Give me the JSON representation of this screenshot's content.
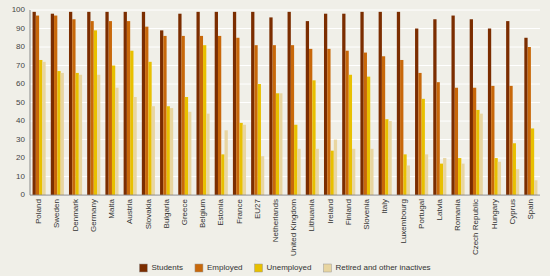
{
  "chart_data": {
    "type": "bar",
    "categories": [
      "Poland",
      "Sweden",
      "Denmark",
      "Germany",
      "Malta",
      "Austria",
      "Slovakia",
      "Bulgaria",
      "Greece",
      "Belgium",
      "Estonia",
      "France",
      "EU27",
      "Netherlands",
      "United Kingdom",
      "Lithuania",
      "Ireland",
      "Finland",
      "Slovenia",
      "Italy",
      "Luxembourg",
      "Portugal",
      "Latvia",
      "Romania",
      "Czech Republic",
      "Hungary",
      "Cyprus",
      "Spain"
    ],
    "series": [
      {
        "name": "Students",
        "color": "#7B2D00",
        "values": [
          99,
          98,
          99,
          99,
          99,
          99,
          99,
          89,
          98,
          99,
          99,
          99,
          99,
          96,
          99,
          94,
          98,
          98,
          99,
          99,
          99,
          90,
          95,
          97,
          95,
          90,
          94,
          85
        ]
      },
      {
        "name": "Employed",
        "color": "#C8680A",
        "values": [
          97,
          97,
          95,
          94,
          94,
          94,
          91,
          86,
          86,
          86,
          86,
          85,
          81,
          81,
          81,
          79,
          79,
          78,
          77,
          75,
          73,
          66,
          61,
          58,
          58,
          59,
          59,
          80
        ]
      },
      {
        "name": "Unemployed",
        "color": "#E8C000",
        "values": [
          73,
          67,
          66,
          89,
          70,
          78,
          72,
          48,
          53,
          81,
          22,
          39,
          60,
          55,
          38,
          62,
          24,
          65,
          64,
          41,
          22,
          52,
          17,
          20,
          46,
          20,
          28,
          36
        ]
      },
      {
        "name": "Retired and other inactives",
        "color": "#E8D5A0",
        "values": [
          72,
          66,
          65,
          65,
          58,
          53,
          48,
          47,
          45,
          44,
          35,
          38,
          21,
          55,
          25,
          25,
          30,
          25,
          25,
          40,
          16,
          22,
          20,
          17,
          44,
          18,
          14,
          8
        ]
      }
    ],
    "ylim": [
      0,
      100
    ],
    "yticks": [
      0,
      10,
      20,
      30,
      40,
      50,
      60,
      70,
      80,
      90,
      100
    ],
    "grid": true,
    "legend": "bottom"
  }
}
